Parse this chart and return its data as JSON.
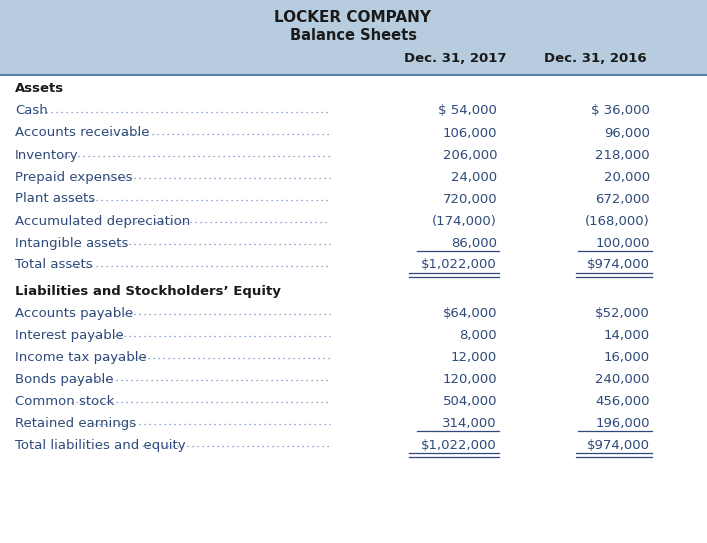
{
  "title_line1": "LOCKER COMPANY",
  "title_line2": "Balance Sheets",
  "col1_header": "Dec. 31, 2017",
  "col2_header": "Dec. 31, 2016",
  "header_bg": "#b8cce0",
  "header_text_color": "#1a1a1a",
  "body_text_color": "#2e4a7a",
  "label_color": "#1a1a1a",
  "dots_color": "#6a8abf",
  "section1_header": "Assets",
  "assets_rows": [
    {
      "label": "Cash",
      "val1": "$ 54,000",
      "val2": "$ 36,000",
      "dots": true
    },
    {
      "label": "Accounts receivable",
      "val1": "106,000",
      "val2": "96,000",
      "dots": true
    },
    {
      "label": "Inventory",
      "val1": "206,000",
      "val2": "218,000",
      "dots": true
    },
    {
      "label": "Prepaid expenses",
      "val1": "24,000",
      "val2": "20,000",
      "dots": true
    },
    {
      "label": "Plant assets",
      "val1": "720,000",
      "val2": "672,000",
      "dots": true
    },
    {
      "label": "Accumulated depreciation",
      "val1": "(174,000)",
      "val2": "(168,000)",
      "dots": true
    },
    {
      "label": "Intangible assets",
      "val1": "86,000",
      "val2": "100,000",
      "dots": true,
      "single_underline": true
    },
    {
      "label": "Total assets",
      "val1": "$1,022,000",
      "val2": "$974,000",
      "dots": true,
      "double_underline": true
    }
  ],
  "section2_header": "Liabilities and Stockholders’ Equity",
  "liabilities_rows": [
    {
      "label": "Accounts payable",
      "val1": "$64,000",
      "val2": "$52,000",
      "dots": true
    },
    {
      "label": "Interest payable",
      "val1": "8,000",
      "val2": "14,000",
      "dots": true
    },
    {
      "label": "Income tax payable",
      "val1": "12,000",
      "val2": "16,000",
      "dots": true
    },
    {
      "label": "Bonds payable",
      "val1": "120,000",
      "val2": "240,000",
      "dots": true
    },
    {
      "label": "Common stock",
      "val1": "504,000",
      "val2": "456,000",
      "dots": true
    },
    {
      "label": "Retained earnings",
      "val1": "314,000",
      "val2": "196,000",
      "dots": true,
      "single_underline": true
    },
    {
      "label": "Total liabilities and equity",
      "val1": "$1,022,000",
      "val2": "$974,000",
      "dots": true,
      "double_underline": true
    }
  ],
  "fig_width": 7.07,
  "fig_height": 5.43,
  "dpi": 100
}
